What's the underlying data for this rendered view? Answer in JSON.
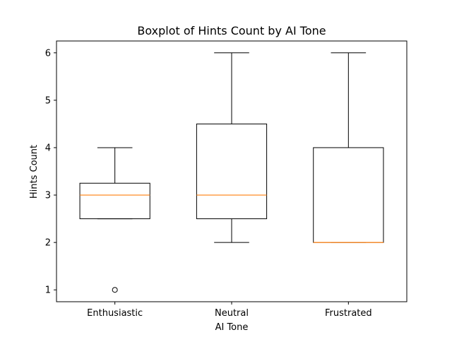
{
  "chart_data": {
    "type": "boxplot",
    "title": "Boxplot of Hints Count by AI Tone",
    "xlabel": "AI Tone",
    "ylabel": "Hints Count",
    "categories": [
      "Enthusiastic",
      "Neutral",
      "Frustrated"
    ],
    "yticks": [
      1,
      2,
      3,
      4,
      5,
      6
    ],
    "ylim": [
      0.75,
      6.25
    ],
    "boxes": [
      {
        "category": "Enthusiastic",
        "whisker_low": 2.5,
        "q1": 2.5,
        "median": 3.0,
        "q3": 3.25,
        "whisker_high": 4.0,
        "outliers": [
          1
        ]
      },
      {
        "category": "Neutral",
        "whisker_low": 2.0,
        "q1": 2.5,
        "median": 3.0,
        "q3": 4.5,
        "whisker_high": 6.0,
        "outliers": []
      },
      {
        "category": "Frustrated",
        "whisker_low": 2.0,
        "q1": 2.0,
        "median": 2.0,
        "q3": 4.0,
        "whisker_high": 6.0,
        "outliers": []
      }
    ],
    "colors": {
      "box": "#000000",
      "median": "#ff7f0e",
      "outlier": "#000000"
    },
    "grid": false,
    "legend": "none"
  }
}
